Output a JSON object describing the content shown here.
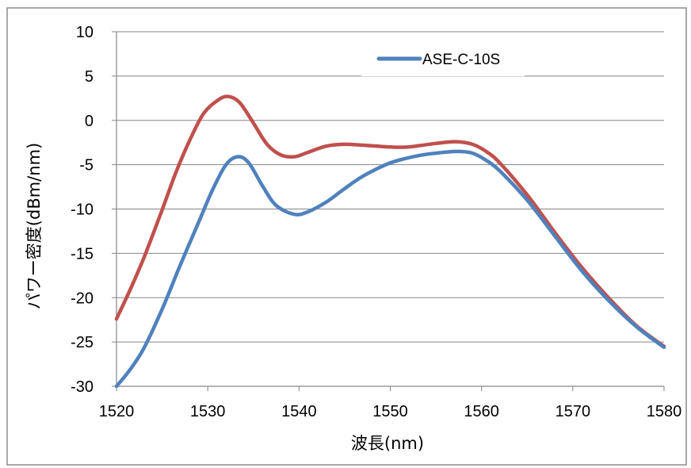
{
  "chart_data": {
    "type": "line",
    "xlabel": "波長(nm)",
    "ylabel": "パワー密度(dBm/nm)",
    "xlim": [
      1520,
      1580
    ],
    "ylim": [
      -30,
      10
    ],
    "xticks": [
      1520,
      1530,
      1540,
      1550,
      1560,
      1570,
      1580
    ],
    "yticks": [
      10,
      5,
      0,
      -5,
      -10,
      -15,
      -20,
      -25,
      -30
    ],
    "grid": "horizontal",
    "legend_position": "top-right",
    "series": [
      {
        "name": "ASE-C-10S",
        "color": "#4f81bd",
        "x": [
          1520,
          1521.5,
          1523,
          1525,
          1527,
          1529,
          1530.5,
          1532,
          1533.3,
          1534.5,
          1536,
          1537.5,
          1539.5,
          1541,
          1543,
          1545,
          1547,
          1550,
          1553,
          1555,
          1557.3,
          1559,
          1560.5,
          1562,
          1565,
          1568,
          1571,
          1574,
          1577,
          1580
        ],
        "y": [
          -30,
          -28.1,
          -25.7,
          -21.3,
          -16.3,
          -11.5,
          -7.9,
          -5.0,
          -4.1,
          -4.8,
          -7.4,
          -9.6,
          -10.6,
          -10.3,
          -9.2,
          -7.7,
          -6.3,
          -4.8,
          -4.0,
          -3.7,
          -3.5,
          -3.7,
          -4.5,
          -5.7,
          -9.0,
          -13.0,
          -17.0,
          -20.4,
          -23.3,
          -25.6
        ]
      },
      {
        "color": "#c0504d",
        "x": [
          1520,
          1521.5,
          1523,
          1525,
          1526.5,
          1528,
          1529.5,
          1531,
          1532.2,
          1533.5,
          1535,
          1536.5,
          1538,
          1539.5,
          1541,
          1543,
          1545,
          1547,
          1550,
          1552,
          1555,
          1557.2,
          1559,
          1560.5,
          1562,
          1565,
          1568,
          1571,
          1574,
          1577,
          1580
        ],
        "y": [
          -22.4,
          -19.1,
          -15.5,
          -10.1,
          -5.9,
          -2.3,
          0.7,
          2.2,
          2.7,
          2.0,
          -0.3,
          -2.7,
          -3.9,
          -4.1,
          -3.6,
          -2.9,
          -2.7,
          -2.8,
          -3.0,
          -3.0,
          -2.6,
          -2.4,
          -2.7,
          -3.5,
          -4.8,
          -8.4,
          -12.6,
          -16.6,
          -20.1,
          -23.2,
          -25.5
        ]
      }
    ]
  }
}
